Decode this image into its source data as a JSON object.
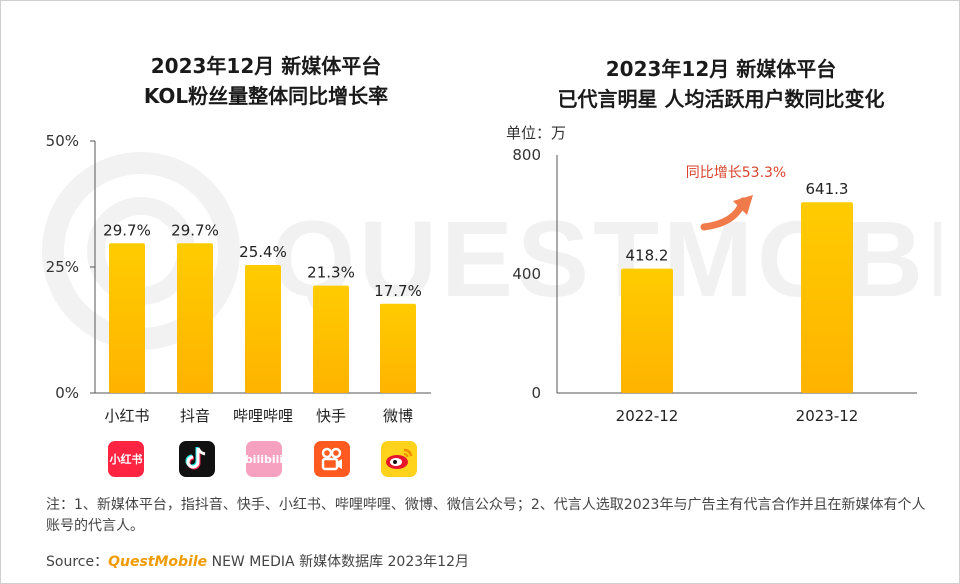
{
  "left_chart": {
    "title_line1": "2023年12月 新媒体平台",
    "title_line2": "KOL粉丝量整体同比增长率"
  },
  "right_chart": {
    "title_line1": "2023年12月 新媒体平台",
    "title_line2": "已代言明星 人均活跃用户数同比变化",
    "unit_label": "单位：万",
    "annotation": "同比增长53.3%"
  },
  "chart_data": [
    {
      "type": "bar",
      "title": "2023年12月 新媒体平台 KOL粉丝量整体同比增长率",
      "categories": [
        "小红书",
        "抖音",
        "哔哩哔哩",
        "快手",
        "微博"
      ],
      "values": [
        29.7,
        29.7,
        25.4,
        21.3,
        17.7
      ],
      "value_labels": [
        "29.7%",
        "29.7%",
        "25.4%",
        "21.3%",
        "17.7%"
      ],
      "ylim": [
        0,
        50
      ],
      "yticks": [
        0,
        25,
        50
      ],
      "ytick_labels": [
        "0%",
        "25%",
        "50%"
      ],
      "xlabel": "",
      "ylabel": ""
    },
    {
      "type": "bar",
      "title": "2023年12月 新媒体平台 已代言明星 人均活跃用户数同比变化",
      "categories": [
        "2022-12",
        "2023-12"
      ],
      "values": [
        418.2,
        641.3
      ],
      "value_labels": [
        "418.2",
        "641.3"
      ],
      "ylim": [
        0,
        800
      ],
      "yticks": [
        0,
        400,
        800
      ],
      "ytick_labels": [
        "0",
        "400",
        "800"
      ],
      "unit": "万",
      "xlabel": "",
      "ylabel": ""
    }
  ],
  "logos": {
    "xiaohongshu_text": "小红书",
    "bilibili_text": "bilibili"
  },
  "watermark_text": "QUESTMOBILE",
  "note": "注：1、新媒体平台，指抖音、快手、小红书、哔哩哔哩、微博、微信公众号；2、代言人选取2023年与广告主有代言合作并且在新媒体有个人账号的代言人。",
  "source": {
    "prefix": "Source：",
    "brand": "QuestMobile",
    "rest": " NEW MEDIA 新媒体数据库 2023年12月"
  },
  "colors": {
    "bar_top": "#ffcc00",
    "bar_bottom": "#ffb300",
    "annotation": "#d9442f",
    "arrow": "#f07a4a",
    "brand": "#f29b00"
  }
}
